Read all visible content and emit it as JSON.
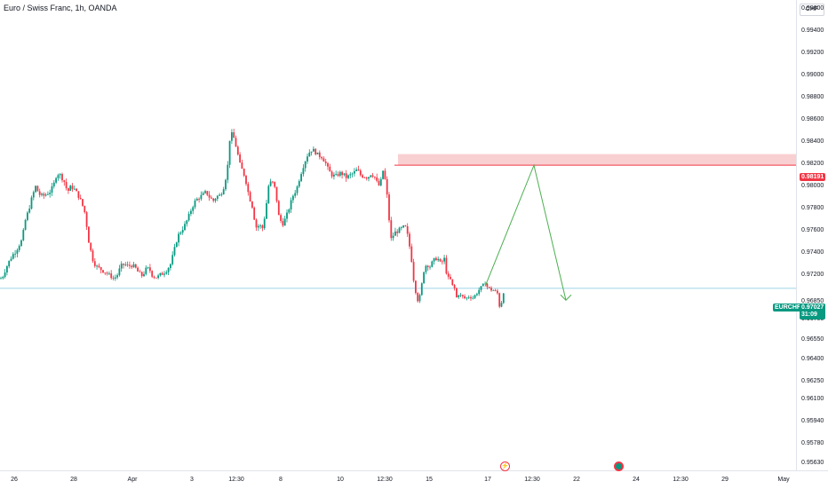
{
  "legend": {
    "title": "Euro / Swiss Franc, 1h, OANDA"
  },
  "currency_button": "CHF",
  "price_axis": {
    "ticks": [
      "0.99600",
      "0.99400",
      "0.99200",
      "0.99000",
      "0.98800",
      "0.98600",
      "0.98400",
      "0.98200",
      "0.98000",
      "0.97800",
      "0.97600",
      "0.97400",
      "0.97200",
      "0.96850",
      "0.96700",
      "0.96550",
      "0.96400",
      "0.96250",
      "0.96100",
      "0.95940",
      "0.95780",
      "0.95630"
    ]
  },
  "time_axis": {
    "ticks": [
      "26",
      "28",
      "Apr",
      "3",
      "12:30",
      "8",
      "10",
      "12:30",
      "15",
      "17",
      "12:30",
      "22",
      "24",
      "12:30",
      "29",
      "May"
    ]
  },
  "markers": {
    "zone_price_label": "0.98191",
    "symbol_label": "EURCHF",
    "current_price": "0.97027",
    "countdown": "31:09"
  },
  "colors": {
    "up": "#089981",
    "down": "#f23645",
    "zone_fill": "#f7c4c7",
    "zone_line": "#f23645",
    "projection": "#4caf50",
    "price_line": "#9fd5e8"
  },
  "chart_data": {
    "type": "candlestick",
    "title": "Euro / Swiss Franc, 1h, OANDA",
    "symbol": "EURCHF",
    "timeframe": "1h",
    "ylabel": "CHF",
    "x_ticks": [
      "26",
      "28",
      "Apr",
      "3",
      "12:30",
      "8",
      "10",
      "12:30",
      "15",
      "17",
      "12:30",
      "22",
      "24",
      "12:30",
      "29",
      "May"
    ],
    "ylim": [
      0.9556,
      0.9966
    ],
    "close_path": {
      "x": [
        0,
        3,
        6,
        10,
        14,
        18,
        22,
        25,
        28,
        32,
        36,
        40,
        44,
        48,
        52,
        56,
        60,
        64,
        68,
        72,
        76,
        80,
        84,
        88,
        92,
        96,
        98,
        100,
        104,
        108,
        112,
        116,
        120,
        124,
        128,
        132,
        136,
        140,
        144,
        148,
        152,
        156,
        160,
        164,
        168,
        172,
        176,
        180,
        184,
        188,
        192,
        196,
        200,
        204,
        208,
        212,
        216,
        220,
        224,
        228,
        232,
        236,
        240,
        244,
        248,
        252,
        256,
        258,
        260,
        263,
        266,
        270,
        274,
        276,
        278,
        280,
        284,
        288,
        292,
        296,
        300,
        302,
        306,
        310,
        314,
        318,
        322,
        326,
        330,
        334,
        338,
        342,
        346,
        350,
        354,
        358,
        362,
        366,
        370,
        374,
        378,
        382,
        386,
        390,
        394,
        398,
        402,
        406,
        410,
        414,
        418,
        422,
        426,
        430,
        432,
        434,
        436,
        438,
        440,
        444,
        448,
        452,
        456,
        460,
        462,
        464,
        466,
        468,
        470,
        472,
        474,
        476,
        480,
        484,
        488,
        492,
        496,
        500,
        504,
        506,
        508,
        510,
        512,
        514,
        516,
        520,
        524,
        528,
        532,
        536,
        540,
        544,
        546,
        548,
        550,
        552,
        556,
        560,
        562,
        564,
        566,
        568
      ],
      "y": [
        0.9715,
        0.9718,
        0.9725,
        0.9732,
        0.9738,
        0.9742,
        0.9748,
        0.9752,
        0.9768,
        0.9778,
        0.979,
        0.98,
        0.9793,
        0.9791,
        0.9793,
        0.9795,
        0.98,
        0.9812,
        0.981,
        0.9805,
        0.9795,
        0.98,
        0.9797,
        0.9792,
        0.9785,
        0.9775,
        0.9762,
        0.975,
        0.9735,
        0.9728,
        0.9726,
        0.9724,
        0.9722,
        0.9719,
        0.9715,
        0.972,
        0.9728,
        0.973,
        0.9728,
        0.9729,
        0.9727,
        0.9722,
        0.9719,
        0.9725,
        0.9726,
        0.9718,
        0.9717,
        0.972,
        0.9722,
        0.9725,
        0.973,
        0.9742,
        0.9755,
        0.976,
        0.9765,
        0.9772,
        0.9781,
        0.9787,
        0.979,
        0.9792,
        0.9795,
        0.979,
        0.9787,
        0.9791,
        0.9792,
        0.98,
        0.9815,
        0.984,
        0.9848,
        0.9844,
        0.9835,
        0.982,
        0.9812,
        0.9808,
        0.98,
        0.9792,
        0.9782,
        0.9763,
        0.9765,
        0.9762,
        0.9785,
        0.98,
        0.9805,
        0.9797,
        0.9772,
        0.9766,
        0.9772,
        0.9782,
        0.9792,
        0.9798,
        0.981,
        0.982,
        0.9828,
        0.9833,
        0.9832,
        0.9828,
        0.9827,
        0.9822,
        0.9814,
        0.981,
        0.9809,
        0.9812,
        0.9811,
        0.9808,
        0.981,
        0.9812,
        0.9815,
        0.981,
        0.9809,
        0.9808,
        0.9812,
        0.9808,
        0.98,
        0.9807,
        0.982,
        0.98,
        0.979,
        0.977,
        0.9752,
        0.9758,
        0.976,
        0.9762,
        0.9764,
        0.9752,
        0.974,
        0.973,
        0.971,
        0.9698,
        0.9687,
        0.969,
        0.9699,
        0.9722,
        0.973,
        0.9728,
        0.9733,
        0.9736,
        0.973,
        0.9735,
        0.9715,
        0.9718,
        0.971,
        0.9704,
        0.9702,
        0.969,
        0.9695,
        0.9692,
        0.9689,
        0.9692,
        0.969,
        0.9695,
        0.9702,
        0.9707,
        0.9711,
        0.9705,
        0.9703,
        0.9701,
        0.97,
        0.9696,
        0.9682,
        0.9681,
        0.9697,
        0.9699
      ]
    },
    "zone": {
      "top": 0.98291,
      "bottom": 0.98191,
      "label": "0.98191"
    },
    "projection": {
      "points": [
        [
          546,
          0.9705
        ],
        [
          601,
          0.9819
        ],
        [
          637,
          0.9687
        ]
      ]
    },
    "current_price": 0.97027
  }
}
